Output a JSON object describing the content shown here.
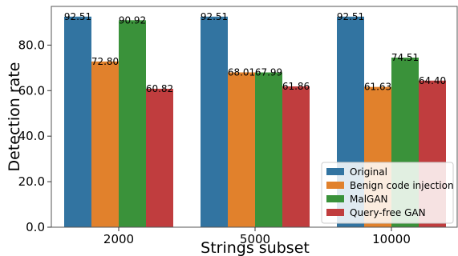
{
  "chart_data": {
    "type": "bar",
    "title": "",
    "xlabel": "Strings subset",
    "ylabel": "Detection rate",
    "categories": [
      "2000",
      "5000",
      "10000"
    ],
    "ylim": [
      0,
      97
    ],
    "yticks": [
      "0.0",
      "20.0",
      "40.0",
      "60.0",
      "80.0"
    ],
    "grid": false,
    "legend": "bottom-right",
    "series": [
      {
        "name": "Original",
        "color": "#3274a1",
        "values": [
          92.51,
          92.51,
          92.51
        ],
        "labels": [
          "92.51",
          "92.51",
          "92.51"
        ]
      },
      {
        "name": "Benign code injection",
        "color": "#e1812c",
        "values": [
          72.8,
          68.01,
          61.63
        ],
        "labels": [
          "72.80",
          "68.01",
          "61.63"
        ]
      },
      {
        "name": "MalGAN",
        "color": "#3a923a",
        "values": [
          90.92,
          67.99,
          74.51
        ],
        "labels": [
          "90.92",
          "67.99",
          "74.51"
        ]
      },
      {
        "name": "Query-free GAN",
        "color": "#c03d3e",
        "values": [
          60.82,
          61.86,
          64.4
        ],
        "labels": [
          "60.82",
          "61.86",
          "64.40"
        ]
      }
    ]
  }
}
